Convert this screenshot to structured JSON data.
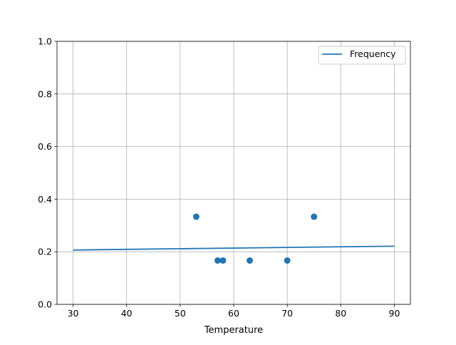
{
  "chart_data": {
    "type": "scatter",
    "title": "",
    "xlabel": "Temperature",
    "ylabel": "",
    "xlim": [
      27,
      93
    ],
    "ylim": [
      0,
      1
    ],
    "xticks": [
      30,
      40,
      50,
      60,
      70,
      80,
      90
    ],
    "yticks": [
      0.0,
      0.2,
      0.4,
      0.6,
      0.8,
      1.0
    ],
    "grid": true,
    "legend_position": "top-right",
    "color": "#1f77b4",
    "scatter_points": {
      "x": [
        53,
        57,
        58,
        63,
        70,
        75
      ],
      "y": [
        0.3333,
        0.1667,
        0.1667,
        0.1667,
        0.1667,
        0.3333
      ]
    },
    "line_series": {
      "name": "Frequency",
      "x": [
        30,
        90
      ],
      "y": [
        0.2067,
        0.2213
      ]
    }
  }
}
